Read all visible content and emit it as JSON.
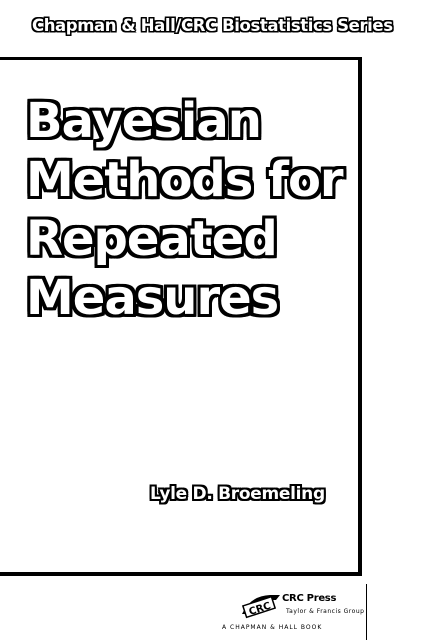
{
  "cover": {
    "series": "Chapman & Hall/CRC Biostatistics Series",
    "title_lines": [
      "Bayesian",
      "Methods for",
      "Repeated",
      "Measures"
    ],
    "author": "Lyle D. Broemeling"
  },
  "publisher": {
    "logo_text": "CRC",
    "name": "CRC Press",
    "sub": "Taylor & Francis Group",
    "imprint": "A CHAPMAN & HALL BOOK"
  },
  "colors": {
    "background": "#ffffff",
    "ink": "#000000"
  }
}
